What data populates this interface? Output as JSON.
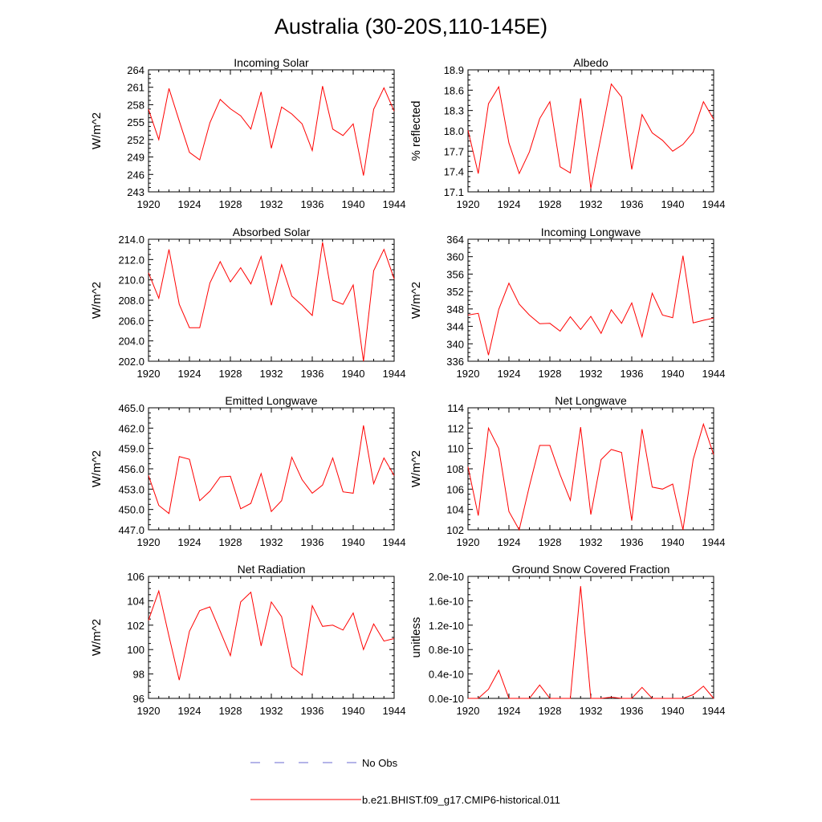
{
  "figure": {
    "title": "Australia (30-20S,110-145E)",
    "model_color": "#ff0000",
    "obs_color": "#6a6ad0"
  },
  "legend": {
    "obs_label": "No Obs",
    "model_label": "b.e21.BHIST.f09_g17.CMIP6-historical.011"
  },
  "chart_data": [
    {
      "type": "line",
      "title": "Incoming Solar",
      "ylabel": "W/m^2",
      "xlim": [
        1920,
        1944
      ],
      "x_ticks": [
        1920,
        1924,
        1928,
        1932,
        1936,
        1940,
        1944
      ],
      "ylim": [
        243,
        264
      ],
      "y_ticks": [
        "243",
        "246",
        "249",
        "252",
        "255",
        "258",
        "261",
        "264"
      ],
      "y_tick_values": [
        243,
        246,
        249,
        252,
        255,
        258,
        261,
        264
      ],
      "x": [
        1920,
        1921,
        1922,
        1923,
        1924,
        1925,
        1926,
        1927,
        1928,
        1929,
        1930,
        1931,
        1932,
        1933,
        1934,
        1935,
        1936,
        1937,
        1938,
        1939,
        1940,
        1941,
        1942,
        1943,
        1944
      ],
      "series": [
        {
          "values": [
            257.2,
            252.0,
            260.8,
            255.2,
            249.8,
            248.5,
            254.9,
            258.9,
            257.3,
            256.1,
            253.8,
            260.2,
            250.5,
            257.6,
            256.4,
            254.7,
            250.1,
            261.2,
            253.8,
            252.7,
            254.7,
            245.8,
            257.2,
            260.9,
            256.9
          ]
        }
      ]
    },
    {
      "type": "line",
      "title": "Albedo",
      "ylabel": "% reflected",
      "xlim": [
        1920,
        1944
      ],
      "x_ticks": [
        1920,
        1924,
        1928,
        1932,
        1936,
        1940,
        1944
      ],
      "ylim": [
        17.1,
        18.9
      ],
      "y_ticks": [
        "17.1",
        "17.4",
        "17.7",
        "18.0",
        "18.3",
        "18.6",
        "18.9"
      ],
      "y_tick_values": [
        17.1,
        17.4,
        17.7,
        18.0,
        18.3,
        18.6,
        18.9
      ],
      "x": [
        1920,
        1921,
        1922,
        1923,
        1924,
        1925,
        1926,
        1927,
        1928,
        1929,
        1930,
        1931,
        1932,
        1933,
        1934,
        1935,
        1936,
        1937,
        1938,
        1939,
        1940,
        1941,
        1942,
        1943,
        1944
      ],
      "series": [
        {
          "values": [
            18.01,
            17.37,
            18.4,
            18.65,
            17.82,
            17.37,
            17.69,
            18.18,
            18.43,
            17.47,
            17.38,
            18.48,
            17.15,
            17.92,
            18.69,
            18.5,
            17.43,
            18.24,
            17.97,
            17.86,
            17.7,
            17.8,
            17.98,
            18.43,
            18.17
          ]
        }
      ]
    },
    {
      "type": "line",
      "title": "Absorbed Solar",
      "ylabel": "W/m^2",
      "xlim": [
        1920,
        1944
      ],
      "x_ticks": [
        1920,
        1924,
        1928,
        1932,
        1936,
        1940,
        1944
      ],
      "ylim": [
        202.0,
        214.0
      ],
      "y_ticks": [
        "202.0",
        "204.0",
        "206.0",
        "208.0",
        "210.0",
        "212.0",
        "214.0"
      ],
      "y_tick_values": [
        202,
        204,
        206,
        208,
        210,
        212,
        214
      ],
      "x": [
        1920,
        1921,
        1922,
        1923,
        1924,
        1925,
        1926,
        1927,
        1928,
        1929,
        1930,
        1931,
        1932,
        1933,
        1934,
        1935,
        1936,
        1937,
        1938,
        1939,
        1940,
        1941,
        1942,
        1943,
        1944
      ],
      "series": [
        {
          "values": [
            210.7,
            208.2,
            213.0,
            207.6,
            205.3,
            205.3,
            209.7,
            211.8,
            209.8,
            211.2,
            209.6,
            212.3,
            207.5,
            211.5,
            208.4,
            207.5,
            206.5,
            213.7,
            208.0,
            207.6,
            209.5,
            202.0,
            210.9,
            213.0,
            210.1
          ]
        }
      ]
    },
    {
      "type": "line",
      "title": "Incoming Longwave",
      "ylabel": "W/m^2",
      "xlim": [
        1920,
        1944
      ],
      "x_ticks": [
        1920,
        1924,
        1928,
        1932,
        1936,
        1940,
        1944
      ],
      "ylim": [
        336,
        364
      ],
      "y_ticks": [
        "336",
        "340",
        "344",
        "348",
        "352",
        "356",
        "360",
        "364"
      ],
      "y_tick_values": [
        336,
        340,
        344,
        348,
        352,
        356,
        360,
        364
      ],
      "x": [
        1920,
        1921,
        1922,
        1923,
        1924,
        1925,
        1926,
        1927,
        1928,
        1929,
        1930,
        1931,
        1932,
        1933,
        1934,
        1935,
        1936,
        1937,
        1938,
        1939,
        1940,
        1941,
        1942,
        1943,
        1944
      ],
      "series": [
        {
          "values": [
            346.6,
            347.0,
            337.4,
            347.9,
            353.9,
            349.1,
            346.6,
            344.6,
            344.7,
            342.9,
            346.2,
            343.3,
            346.3,
            342.4,
            347.8,
            344.7,
            349.4,
            341.6,
            351.6,
            346.6,
            346.0,
            360.2,
            344.8,
            345.4,
            345.9
          ]
        }
      ]
    },
    {
      "type": "line",
      "title": "Emitted Longwave",
      "ylabel": "W/m^2",
      "xlim": [
        1920,
        1944
      ],
      "x_ticks": [
        1920,
        1924,
        1928,
        1932,
        1936,
        1940,
        1944
      ],
      "ylim": [
        447.0,
        465.0
      ],
      "y_ticks": [
        "447.0",
        "450.0",
        "453.0",
        "456.0",
        "459.0",
        "462.0",
        "465.0"
      ],
      "y_tick_values": [
        447,
        450,
        453,
        456,
        459,
        462,
        465
      ],
      "x": [
        1920,
        1921,
        1922,
        1923,
        1924,
        1925,
        1926,
        1927,
        1928,
        1929,
        1930,
        1931,
        1932,
        1933,
        1934,
        1935,
        1936,
        1937,
        1938,
        1939,
        1940,
        1941,
        1942,
        1943,
        1944
      ],
      "series": [
        {
          "values": [
            455.0,
            450.6,
            449.4,
            457.8,
            457.4,
            451.3,
            452.7,
            454.8,
            454.9,
            450.1,
            450.9,
            455.3,
            449.7,
            451.3,
            457.7,
            454.4,
            452.4,
            453.6,
            457.6,
            452.6,
            452.4,
            462.4,
            453.8,
            457.6,
            455.0
          ]
        }
      ]
    },
    {
      "type": "line",
      "title": "Net Longwave",
      "ylabel": "W/m^2",
      "xlim": [
        1920,
        1944
      ],
      "x_ticks": [
        1920,
        1924,
        1928,
        1932,
        1936,
        1940,
        1944
      ],
      "ylim": [
        102,
        114
      ],
      "y_ticks": [
        "102",
        "104",
        "106",
        "108",
        "110",
        "112",
        "114"
      ],
      "y_tick_values": [
        102,
        104,
        106,
        108,
        110,
        112,
        114
      ],
      "x": [
        1920,
        1921,
        1922,
        1923,
        1924,
        1925,
        1926,
        1927,
        1928,
        1929,
        1930,
        1931,
        1932,
        1933,
        1934,
        1935,
        1936,
        1937,
        1938,
        1939,
        1940,
        1941,
        1942,
        1943,
        1944
      ],
      "series": [
        {
          "values": [
            108.2,
            103.4,
            112.0,
            110.0,
            103.8,
            102.0,
            106.3,
            110.3,
            110.3,
            107.4,
            104.9,
            112.1,
            103.5,
            108.9,
            109.9,
            109.6,
            102.9,
            111.9,
            106.2,
            106.0,
            106.5,
            102.0,
            108.9,
            112.4,
            109.4
          ]
        }
      ]
    },
    {
      "type": "line",
      "title": "Net Radiation",
      "ylabel": "W/m^2",
      "xlim": [
        1920,
        1944
      ],
      "x_ticks": [
        1920,
        1924,
        1928,
        1932,
        1936,
        1940,
        1944
      ],
      "ylim": [
        96,
        106
      ],
      "y_ticks": [
        "96",
        "98",
        "100",
        "102",
        "104",
        "106"
      ],
      "y_tick_values": [
        96,
        98,
        100,
        102,
        104,
        106
      ],
      "x": [
        1920,
        1921,
        1922,
        1923,
        1924,
        1925,
        1926,
        1927,
        1928,
        1929,
        1930,
        1931,
        1932,
        1933,
        1934,
        1935,
        1936,
        1937,
        1938,
        1939,
        1940,
        1941,
        1942,
        1943,
        1944
      ],
      "series": [
        {
          "values": [
            102.4,
            104.8,
            101.1,
            97.5,
            101.5,
            103.2,
            103.5,
            101.5,
            99.5,
            103.9,
            104.7,
            100.3,
            103.9,
            102.7,
            98.6,
            97.9,
            103.6,
            101.9,
            102.0,
            101.6,
            103.0,
            100.0,
            102.1,
            100.7,
            100.9
          ]
        }
      ]
    },
    {
      "type": "line",
      "title": "Ground Snow Covered Fraction",
      "ylabel": "unitless",
      "xlim": [
        1920,
        1944
      ],
      "x_ticks": [
        1920,
        1924,
        1928,
        1932,
        1936,
        1940,
        1944
      ],
      "ylim": [
        0.0,
        2.0
      ],
      "y_ticks": [
        "0.0e-10",
        "0.4e-10",
        "0.8e-10",
        "1.2e-10",
        "1.6e-10",
        "2.0e-10"
      ],
      "y_tick_values": [
        0.0,
        0.4,
        0.8,
        1.2,
        1.6,
        2.0
      ],
      "x": [
        1920,
        1921,
        1922,
        1923,
        1924,
        1925,
        1926,
        1927,
        1928,
        1929,
        1930,
        1931,
        1932,
        1933,
        1934,
        1935,
        1936,
        1937,
        1938,
        1939,
        1940,
        1941,
        1942,
        1943,
        1944
      ],
      "series": [
        {
          "values": [
            0.0,
            0.0,
            0.15,
            0.46,
            0.0,
            0.0,
            0.0,
            0.22,
            0.0,
            0.0,
            0.0,
            1.84,
            0.0,
            0.0,
            0.02,
            0.0,
            0.0,
            0.18,
            0.0,
            0.0,
            0.0,
            0.0,
            0.06,
            0.2,
            0.0
          ]
        }
      ]
    }
  ]
}
